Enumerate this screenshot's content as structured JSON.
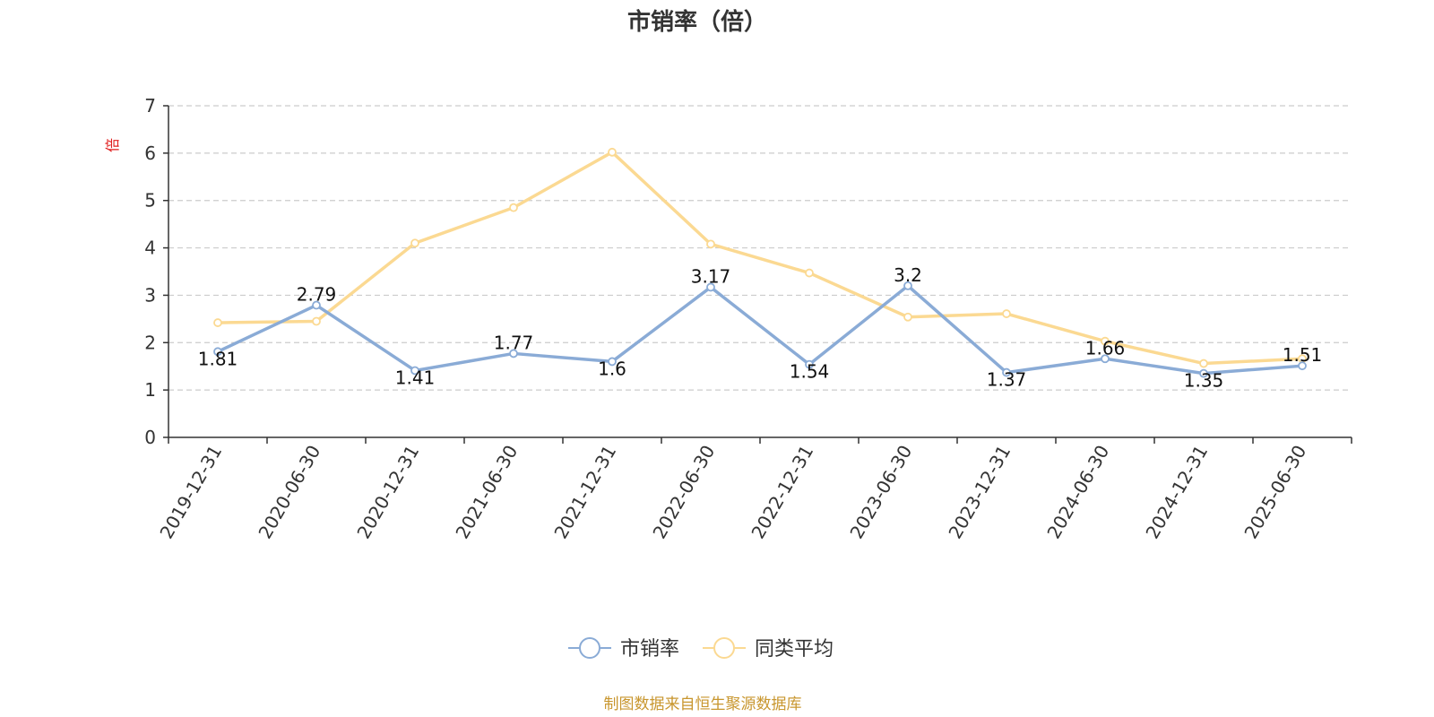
{
  "chart_data": {
    "type": "line",
    "title": "市销率（倍）",
    "ylabel": "倍",
    "ylim": [
      0,
      7
    ],
    "yticks": [
      0,
      1,
      2,
      3,
      4,
      5,
      6,
      7
    ],
    "grid": true,
    "legend_position": "bottom-center",
    "categories": [
      "2019-12-31",
      "2020-06-30",
      "2020-12-31",
      "2021-06-30",
      "2021-12-31",
      "2022-06-30",
      "2022-12-31",
      "2023-06-30",
      "2023-12-31",
      "2024-06-30",
      "2024-12-31",
      "2025-06-30"
    ],
    "series": [
      {
        "name": "市销率",
        "color": "#8aabd6",
        "show_labels": true,
        "values": [
          1.81,
          2.79,
          1.41,
          1.77,
          1.6,
          3.17,
          1.54,
          3.2,
          1.37,
          1.66,
          1.35,
          1.51
        ],
        "labels": [
          "1.81",
          "2.79",
          "1.41",
          "1.77",
          "1.6",
          "3.17",
          "1.54",
          "3.2",
          "1.37",
          "1.66",
          "1.35",
          "1.51"
        ]
      },
      {
        "name": "同类平均",
        "color": "#fbd992",
        "show_labels": false,
        "values": [
          2.42,
          2.45,
          4.1,
          4.85,
          6.02,
          4.08,
          3.47,
          2.54,
          2.61,
          2.03,
          1.56,
          1.66
        ]
      }
    ]
  },
  "footer": "制图数据来自恒生聚源数据库"
}
